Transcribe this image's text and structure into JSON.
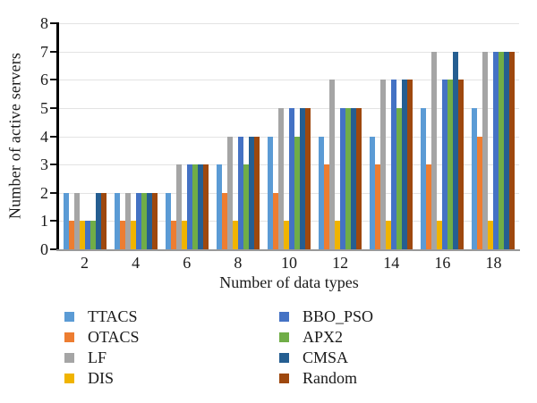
{
  "chart_data": {
    "type": "bar",
    "title": "",
    "xlabel": "Number of data types",
    "ylabel": "Number of active servers",
    "categories": [
      "2",
      "4",
      "6",
      "8",
      "10",
      "12",
      "14",
      "16",
      "18"
    ],
    "ylim": [
      0,
      8
    ],
    "yticks": [
      0,
      1,
      2,
      3,
      4,
      5,
      6,
      7,
      8
    ],
    "grid": "horizontal",
    "legend_position": "bottom",
    "legend_columns": 2,
    "series": [
      {
        "name": "TTACS",
        "color": "#5B9BD5",
        "values": [
          2,
          2,
          2,
          3,
          4,
          4,
          4,
          5,
          5
        ]
      },
      {
        "name": "OTACS",
        "color": "#ED7D31",
        "values": [
          1,
          1,
          1,
          2,
          2,
          3,
          3,
          3,
          4
        ]
      },
      {
        "name": "LF",
        "color": "#A5A5A5",
        "values": [
          2,
          2,
          3,
          4,
          5,
          6,
          6,
          7,
          7
        ]
      },
      {
        "name": "DIS",
        "color": "#F0B400",
        "values": [
          1,
          1,
          1,
          1,
          1,
          1,
          1,
          1,
          1
        ]
      },
      {
        "name": "BBO_PSO",
        "color": "#4472C4",
        "values": [
          1,
          2,
          3,
          4,
          5,
          5,
          6,
          6,
          7
        ]
      },
      {
        "name": "APX2",
        "color": "#70AD47",
        "values": [
          1,
          2,
          3,
          3,
          4,
          5,
          5,
          6,
          7
        ]
      },
      {
        "name": "CMSA",
        "color": "#255E91",
        "values": [
          2,
          2,
          3,
          4,
          5,
          5,
          6,
          7,
          7
        ]
      },
      {
        "name": "Random",
        "color": "#9E480E",
        "values": [
          2,
          2,
          3,
          4,
          5,
          5,
          6,
          6,
          7
        ]
      }
    ],
    "style": {
      "gridline_color": "#e3e3e3",
      "y_axis_color": "#000000",
      "x_axis_color": "#9a9a9a",
      "text_color": "#1a1a1a",
      "background": "#ffffff"
    }
  }
}
